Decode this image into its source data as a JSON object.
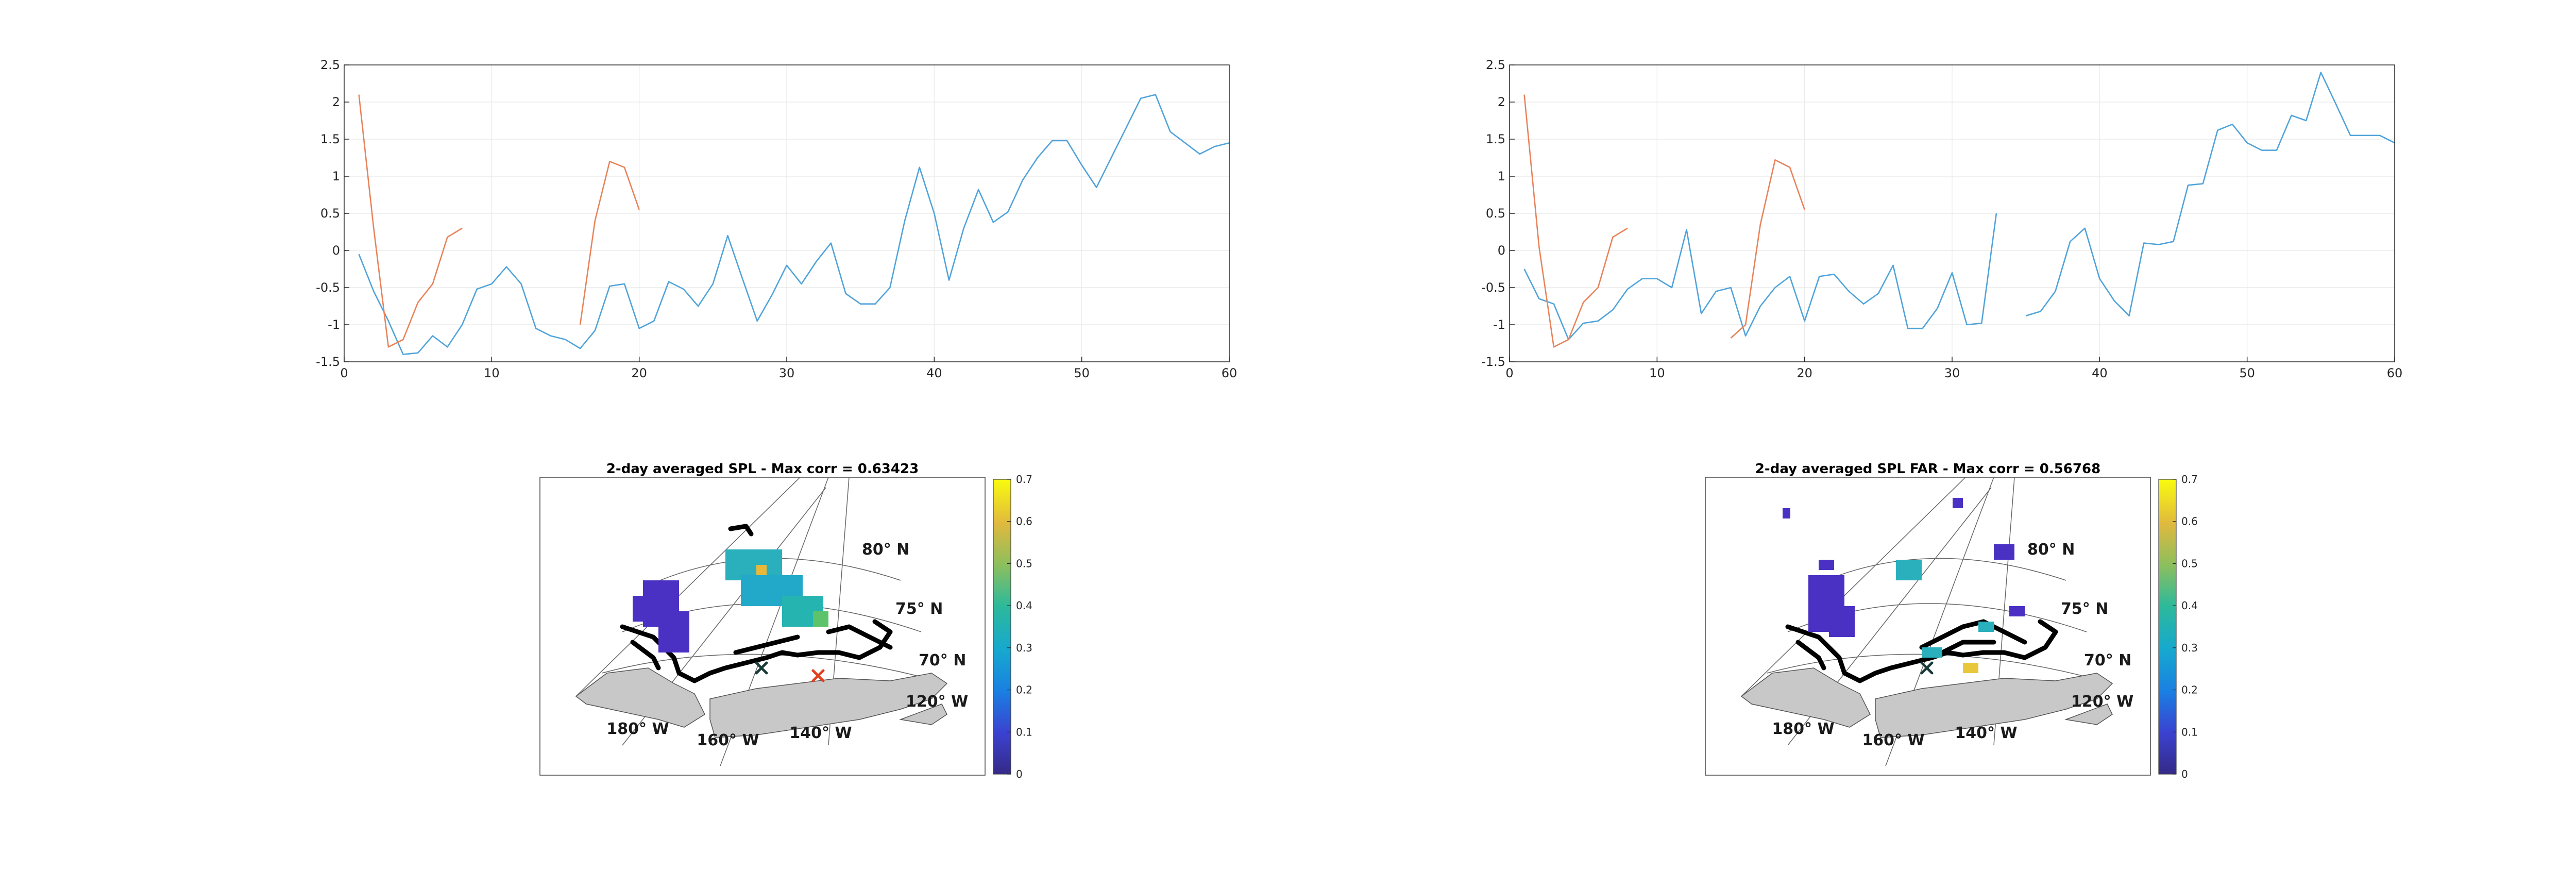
{
  "chart_data": [
    {
      "type": "line",
      "title": "",
      "xlabel": "",
      "ylabel": "",
      "xlim": [
        0,
        60
      ],
      "ylim": [
        -1.5,
        2.5
      ],
      "xticks": [
        "0",
        "10",
        "20",
        "30",
        "40",
        "50",
        "60"
      ],
      "yticks": [
        "-1.5",
        "-1",
        "-0.5",
        "0",
        "0.5",
        "1",
        "1.5",
        "2",
        "2.5"
      ],
      "grid": true,
      "colors": {
        "series_blue": "#4fa3d9",
        "series_orange": "#e8825a"
      },
      "series": [
        {
          "color": "series_blue",
          "x": [
            1,
            2,
            3,
            4,
            5,
            6,
            7,
            8,
            9,
            10,
            11,
            12,
            13,
            14,
            15,
            16,
            17,
            18,
            19,
            20,
            21,
            22,
            23,
            24,
            25,
            26,
            27,
            28,
            29,
            30,
            31,
            32,
            33,
            34,
            35,
            36,
            37,
            38,
            39,
            40,
            41,
            42,
            43,
            44,
            45,
            46,
            47,
            48,
            49,
            50,
            51,
            52,
            53,
            54,
            55,
            56,
            57,
            58,
            59,
            60
          ],
          "y": [
            -0.05,
            -0.55,
            -0.95,
            -1.4,
            -1.38,
            -1.15,
            -1.3,
            -1.0,
            -0.52,
            -0.45,
            -0.22,
            -0.45,
            -1.05,
            -1.15,
            -1.2,
            -1.32,
            -1.08,
            -0.48,
            -0.45,
            -1.05,
            -0.95,
            -0.42,
            -0.52,
            -0.75,
            -0.45,
            0.2,
            -0.38,
            -0.95,
            -0.6,
            -0.2,
            -0.45,
            -0.15,
            0.1,
            -0.58,
            -0.72,
            -0.72,
            -0.5,
            0.4,
            1.12,
            0.5,
            -0.4,
            0.3,
            0.82,
            0.38,
            0.52,
            0.95,
            1.25,
            1.48,
            1.48,
            1.15,
            0.85,
            1.25,
            1.65,
            2.05,
            2.1,
            1.6,
            1.45,
            1.3,
            1.4,
            1.45
          ]
        },
        {
          "color": "series_orange",
          "x": [
            1,
            2,
            3,
            4,
            5,
            6,
            7,
            8
          ],
          "y": [
            2.1,
            0.3,
            -1.3,
            -1.2,
            -0.7,
            -0.45,
            0.18,
            0.3
          ]
        },
        {
          "color": "series_orange",
          "x": [
            16,
            17,
            18,
            19,
            20
          ],
          "y": [
            -1.0,
            0.4,
            1.2,
            1.12,
            0.55
          ]
        }
      ]
    },
    {
      "type": "line",
      "title": "",
      "xlabel": "",
      "ylabel": "",
      "xlim": [
        0,
        60
      ],
      "ylim": [
        -1.5,
        2.5
      ],
      "xticks": [
        "0",
        "10",
        "20",
        "30",
        "40",
        "50",
        "60"
      ],
      "yticks": [
        "-1.5",
        "-1",
        "-0.5",
        "0",
        "0.5",
        "1",
        "1.5",
        "2",
        "2.5"
      ],
      "grid": true,
      "colors": {
        "series_blue": "#4fa3d9",
        "series_orange": "#e8825a"
      },
      "series": [
        {
          "color": "series_blue",
          "x": [
            1,
            2,
            3,
            4,
            5,
            6,
            7,
            8,
            9,
            10,
            11,
            12,
            13,
            14,
            15,
            16,
            17,
            18,
            19,
            20,
            21,
            22,
            23,
            24,
            25,
            26,
            27,
            28,
            29,
            30,
            31,
            32,
            33
          ],
          "y": [
            -0.25,
            -0.65,
            -0.72,
            -1.2,
            -0.98,
            -0.95,
            -0.8,
            -0.52,
            -0.38,
            -0.38,
            -0.5,
            0.28,
            -0.85,
            -0.55,
            -0.5,
            -1.15,
            -0.75,
            -0.5,
            -0.35,
            -0.95,
            -0.35,
            -0.32,
            -0.55,
            -0.72,
            -0.58,
            -0.2,
            -1.05,
            -1.05,
            -0.78,
            -0.3,
            -1.0,
            -0.98,
            0.5
          ]
        },
        {
          "color": "series_blue",
          "x": [
            35,
            36,
            37,
            38,
            39,
            40,
            41,
            42,
            43,
            44,
            45,
            46,
            47,
            48,
            49,
            50,
            51,
            52,
            53,
            54,
            55,
            56,
            57,
            58,
            59,
            60
          ],
          "y": [
            -0.88,
            -0.82,
            -0.55,
            0.12,
            0.3,
            -0.38,
            -0.68,
            -0.88,
            0.1,
            0.08,
            0.12,
            0.88,
            0.9,
            1.62,
            1.7,
            1.45,
            1.35,
            1.35,
            1.82,
            1.75,
            2.4,
            1.98,
            1.55,
            1.55,
            1.55,
            1.45
          ]
        },
        {
          "color": "series_orange",
          "x": [
            1,
            2,
            3,
            4,
            5,
            6,
            7,
            8
          ],
          "y": [
            2.1,
            0.05,
            -1.3,
            -1.2,
            -0.7,
            -0.5,
            0.18,
            0.3
          ]
        },
        {
          "color": "series_orange",
          "x": [
            15,
            16,
            17,
            18,
            19,
            20
          ],
          "y": [
            -1.18,
            -1.0,
            0.35,
            1.22,
            1.12,
            0.55
          ]
        }
      ]
    },
    {
      "type": "heatmap",
      "title": "2-day averaged SPL - Max corr = 0.63423",
      "colorbar": {
        "min": 0,
        "max": 0.7,
        "ticks": [
          "0",
          "0.1",
          "0.2",
          "0.3",
          "0.4",
          "0.5",
          "0.6",
          "0.7"
        ]
      },
      "lat_labels": [
        "80° N",
        "75° N",
        "70° N"
      ],
      "lon_labels": [
        "120° W",
        "140° W",
        "160° W",
        "180° W"
      ]
    },
    {
      "type": "heatmap",
      "title": "2-day averaged SPL FAR - Max corr = 0.56768",
      "colorbar": {
        "min": 0,
        "max": 0.7,
        "ticks": [
          "0",
          "0.1",
          "0.2",
          "0.3",
          "0.4",
          "0.5",
          "0.6",
          "0.7"
        ]
      },
      "lat_labels": [
        "80° N",
        "75° N",
        "70° N"
      ],
      "lon_labels": [
        "120° W",
        "140° W",
        "160° W",
        "180° W"
      ]
    }
  ],
  "colors": {
    "land": "#c8c8c8",
    "coast_track": "#000000",
    "grid_line": "#e8e8e8",
    "axis": "#262626"
  }
}
